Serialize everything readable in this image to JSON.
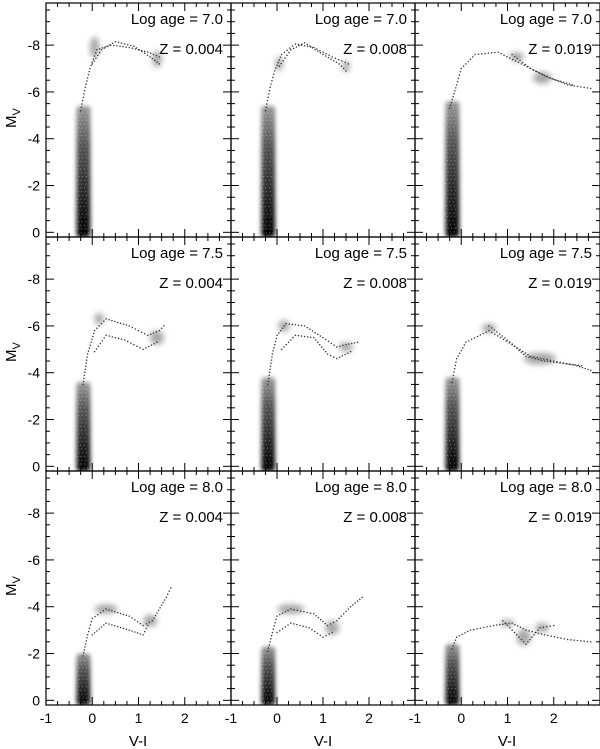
{
  "figure": {
    "ylabel": "M",
    "ylabel_sub": "V",
    "xlabel": "V-I"
  },
  "chart_data": {
    "type": "scatter",
    "xlabel": "V-I",
    "ylabel": "M_V",
    "xlim": [
      -1,
      3
    ],
    "ylim": [
      0.2,
      -9.8
    ],
    "x_ticks": [
      -1,
      0,
      1,
      2
    ],
    "x_tick_labels": [
      "-1",
      "0",
      "1",
      "2"
    ],
    "y_ticks": [
      0,
      -2,
      -4,
      -6,
      -8
    ],
    "y_tick_labels": [
      "0",
      "-2",
      "-4",
      "-6",
      "-8"
    ],
    "grid": false,
    "panels": [
      {
        "row": 0,
        "col": 0,
        "age_label": "Log age = 7.0",
        "z_label": "Z = 0.004",
        "ms_top": -5.4,
        "tracks": [
          [
            [
              -0.25,
              -5.2
            ],
            [
              -0.15,
              -6.2
            ],
            [
              -0.05,
              -7.0
            ],
            [
              0.1,
              -7.8
            ],
            [
              0.4,
              -8.0
            ],
            [
              0.8,
              -7.9
            ],
            [
              1.2,
              -7.7
            ],
            [
              1.45,
              -7.5
            ]
          ],
          [
            [
              0.0,
              -7.2
            ],
            [
              0.2,
              -7.8
            ],
            [
              0.5,
              -8.15
            ],
            [
              0.9,
              -7.95
            ],
            [
              1.25,
              -7.5
            ],
            [
              1.45,
              -7.2
            ]
          ]
        ],
        "clumps": [
          [
            0.05,
            -7.9,
            0.1,
            0.45
          ],
          [
            1.4,
            -7.4,
            0.1,
            0.35
          ]
        ]
      },
      {
        "row": 0,
        "col": 1,
        "age_label": "Log age = 7.0",
        "z_label": "Z = 0.008",
        "ms_top": -5.4,
        "tracks": [
          [
            [
              -0.25,
              -5.2
            ],
            [
              -0.15,
              -6.2
            ],
            [
              -0.05,
              -6.9
            ],
            [
              0.1,
              -7.6
            ],
            [
              0.4,
              -8.05
            ],
            [
              0.8,
              -7.9
            ],
            [
              1.2,
              -7.5
            ],
            [
              1.55,
              -7.2
            ]
          ],
          [
            [
              0.05,
              -7.1
            ],
            [
              0.3,
              -7.8
            ],
            [
              0.6,
              -8.1
            ],
            [
              1.0,
              -7.6
            ],
            [
              1.35,
              -7.2
            ],
            [
              1.5,
              -6.9
            ]
          ]
        ],
        "clumps": [
          [
            0.05,
            -7.2,
            0.08,
            0.3
          ],
          [
            1.5,
            -7.1,
            0.08,
            0.25
          ]
        ]
      },
      {
        "row": 0,
        "col": 2,
        "age_label": "Log age = 7.0",
        "z_label": "Z = 0.019",
        "ms_top": -5.6,
        "tracks": [
          [
            [
              -0.25,
              -5.3
            ],
            [
              -0.1,
              -6.3
            ],
            [
              0.0,
              -7.0
            ],
            [
              0.3,
              -7.6
            ],
            [
              0.8,
              -7.7
            ],
            [
              1.3,
              -7.2
            ],
            [
              1.8,
              -6.7
            ],
            [
              2.3,
              -6.3
            ],
            [
              2.8,
              -6.15
            ]
          ],
          [
            [
              1.1,
              -7.6
            ],
            [
              1.5,
              -7.0
            ],
            [
              1.9,
              -6.6
            ],
            [
              2.4,
              -6.3
            ]
          ]
        ],
        "clumps": [
          [
            1.2,
            -7.5,
            0.15,
            0.2
          ],
          [
            1.75,
            -6.6,
            0.2,
            0.25
          ]
        ]
      },
      {
        "row": 1,
        "col": 0,
        "age_label": "Log age = 7.5",
        "z_label": "Z = 0.004",
        "ms_top": -3.6,
        "tracks": [
          [
            [
              -0.2,
              -3.5
            ],
            [
              -0.1,
              -4.8
            ],
            [
              0.05,
              -5.8
            ],
            [
              0.3,
              -6.3
            ],
            [
              0.8,
              -6.0
            ],
            [
              1.2,
              -5.6
            ],
            [
              1.45,
              -5.8
            ],
            [
              1.55,
              -6.0
            ]
          ],
          [
            [
              0.05,
              -4.9
            ],
            [
              0.3,
              -5.6
            ],
            [
              0.7,
              -5.4
            ],
            [
              1.1,
              -5.0
            ],
            [
              1.4,
              -5.3
            ]
          ]
        ],
        "clumps": [
          [
            0.15,
            -6.3,
            0.1,
            0.25
          ],
          [
            1.4,
            -5.5,
            0.15,
            0.3
          ]
        ]
      },
      {
        "row": 1,
        "col": 1,
        "age_label": "Log age = 7.5",
        "z_label": "Z = 0.008",
        "ms_top": -3.8,
        "tracks": [
          [
            [
              -0.2,
              -3.5
            ],
            [
              -0.1,
              -4.8
            ],
            [
              0.0,
              -5.6
            ],
            [
              0.2,
              -6.1
            ],
            [
              0.6,
              -6.0
            ],
            [
              1.0,
              -5.5
            ],
            [
              1.3,
              -5.1
            ],
            [
              1.5,
              -5.2
            ],
            [
              1.75,
              -5.3
            ]
          ],
          [
            [
              0.1,
              -5.0
            ],
            [
              0.4,
              -5.6
            ],
            [
              0.8,
              -5.5
            ],
            [
              1.1,
              -4.8
            ],
            [
              1.3,
              -4.6
            ],
            [
              1.6,
              -4.9
            ]
          ]
        ],
        "clumps": [
          [
            0.15,
            -6.0,
            0.12,
            0.25
          ],
          [
            1.5,
            -5.1,
            0.15,
            0.2
          ]
        ]
      },
      {
        "row": 1,
        "col": 2,
        "age_label": "Log age = 7.5",
        "z_label": "Z = 0.019",
        "ms_top": -3.8,
        "tracks": [
          [
            [
              -0.2,
              -3.6
            ],
            [
              -0.1,
              -4.6
            ],
            [
              0.1,
              -5.3
            ],
            [
              0.6,
              -5.8
            ],
            [
              1.1,
              -5.2
            ],
            [
              1.5,
              -4.7
            ],
            [
              2.0,
              -4.5
            ],
            [
              2.5,
              -4.3
            ],
            [
              2.8,
              -4.1
            ]
          ],
          [
            [
              0.6,
              -6.0
            ],
            [
              1.0,
              -5.4
            ],
            [
              1.4,
              -4.7
            ],
            [
              1.8,
              -4.5
            ],
            [
              2.2,
              -4.4
            ],
            [
              2.6,
              -4.3
            ]
          ]
        ],
        "clumps": [
          [
            0.6,
            -5.9,
            0.15,
            0.2
          ],
          [
            1.7,
            -4.6,
            0.35,
            0.25
          ]
        ]
      },
      {
        "row": 2,
        "col": 0,
        "age_label": "Log age = 8.0",
        "z_label": "Z = 0.004",
        "ms_top": -2.0,
        "tracks": [
          [
            [
              -0.2,
              -1.9
            ],
            [
              -0.1,
              -2.8
            ],
            [
              0.0,
              -3.5
            ],
            [
              0.3,
              -3.9
            ],
            [
              0.8,
              -3.6
            ],
            [
              1.1,
              -3.2
            ],
            [
              1.3,
              -3.4
            ],
            [
              1.6,
              -4.4
            ],
            [
              1.7,
              -4.8
            ]
          ],
          [
            [
              0.0,
              -2.8
            ],
            [
              0.3,
              -3.3
            ],
            [
              0.8,
              -3.0
            ],
            [
              1.1,
              -2.8
            ],
            [
              1.2,
              -3.2
            ]
          ]
        ],
        "clumps": [
          [
            0.3,
            -3.9,
            0.25,
            0.2
          ],
          [
            1.25,
            -3.4,
            0.15,
            0.25
          ]
        ]
      },
      {
        "row": 2,
        "col": 1,
        "age_label": "Log age = 8.0",
        "z_label": "Z = 0.008",
        "ms_top": -2.3,
        "tracks": [
          [
            [
              -0.2,
              -2.1
            ],
            [
              -0.1,
              -2.9
            ],
            [
              0.0,
              -3.6
            ],
            [
              0.3,
              -3.9
            ],
            [
              0.8,
              -3.7
            ],
            [
              1.1,
              -3.2
            ],
            [
              1.3,
              -3.4
            ],
            [
              1.6,
              -4.0
            ],
            [
              1.85,
              -4.4
            ]
          ],
          [
            [
              0.0,
              -2.9
            ],
            [
              0.3,
              -3.3
            ],
            [
              0.7,
              -3.1
            ],
            [
              1.0,
              -2.7
            ],
            [
              1.2,
              -2.9
            ]
          ]
        ],
        "clumps": [
          [
            0.3,
            -3.9,
            0.3,
            0.2
          ],
          [
            1.2,
            -3.1,
            0.15,
            0.3
          ]
        ]
      },
      {
        "row": 2,
        "col": 2,
        "age_label": "Log age = 8.0",
        "z_label": "Z = 0.019",
        "ms_top": -2.4,
        "tracks": [
          [
            [
              -0.2,
              -2.2
            ],
            [
              -0.1,
              -2.7
            ],
            [
              0.2,
              -3.0
            ],
            [
              0.7,
              -3.2
            ],
            [
              1.1,
              -3.3
            ],
            [
              1.4,
              -3.0
            ],
            [
              1.8,
              -2.8
            ],
            [
              2.3,
              -2.6
            ],
            [
              2.8,
              -2.5
            ]
          ],
          [
            [
              0.9,
              -3.4
            ],
            [
              1.2,
              -2.8
            ],
            [
              1.4,
              -2.4
            ],
            [
              1.7,
              -3.1
            ],
            [
              2.0,
              -3.2
            ]
          ]
        ],
        "clumps": [
          [
            1.0,
            -3.3,
            0.15,
            0.15
          ],
          [
            1.35,
            -2.7,
            0.15,
            0.35
          ],
          [
            1.75,
            -3.1,
            0.15,
            0.2
          ]
        ]
      }
    ]
  }
}
